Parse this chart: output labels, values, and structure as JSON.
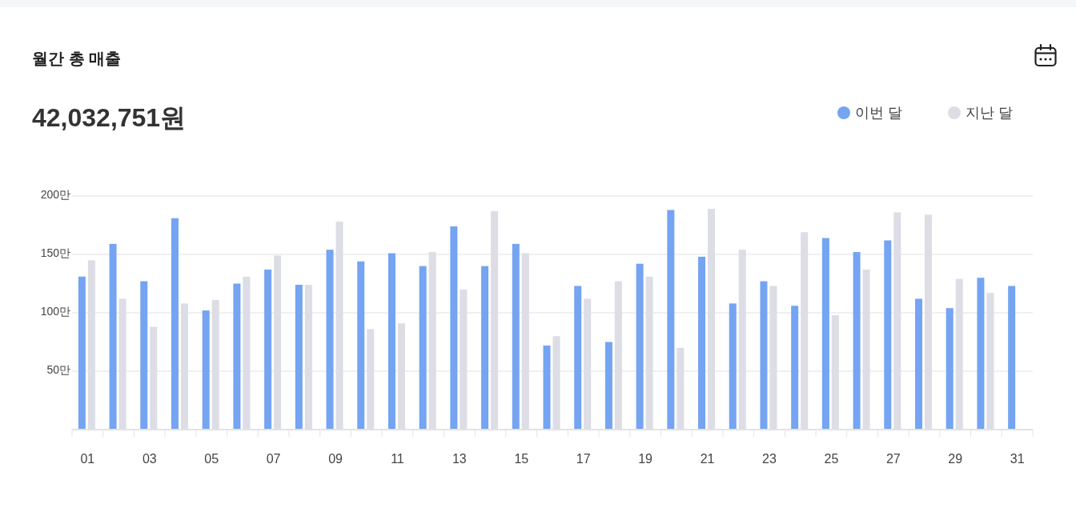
{
  "chart_data": {
    "type": "bar",
    "title": "월간 총 매출",
    "subtitle": "42,032,751원",
    "categories": [
      "01",
      null,
      "03",
      null,
      "05",
      null,
      "07",
      null,
      "09",
      null,
      "11",
      null,
      "13",
      null,
      "15",
      null,
      "17",
      null,
      "19",
      null,
      "21",
      null,
      "23",
      null,
      "25",
      null,
      "27",
      null,
      "29",
      null,
      "31"
    ],
    "series": [
      {
        "name": "이번 달",
        "color": "#74a4f2",
        "values": [
          131,
          159,
          127,
          181,
          102,
          125,
          137,
          124,
          154,
          144,
          151,
          140,
          174,
          140,
          159,
          72,
          123,
          75,
          142,
          188,
          148,
          108,
          127,
          106,
          164,
          152,
          162,
          112,
          104,
          130,
          123
        ]
      },
      {
        "name": "지난 달",
        "color": "#dcdde5",
        "values": [
          145,
          112,
          88,
          108,
          111,
          131,
          149,
          124,
          178,
          86,
          91,
          152,
          120,
          187,
          151,
          80,
          112,
          127,
          131,
          70,
          189,
          154,
          123,
          169,
          98,
          137,
          186,
          184,
          129,
          117,
          null
        ]
      }
    ],
    "ylim": [
      0,
      200
    ],
    "yticks": [
      {
        "value": 50,
        "label": "50만"
      },
      {
        "value": 100,
        "label": "100만"
      },
      {
        "value": 150,
        "label": "150만"
      },
      {
        "value": 200,
        "label": "200만"
      }
    ],
    "grid": "y",
    "legend": "top right"
  }
}
